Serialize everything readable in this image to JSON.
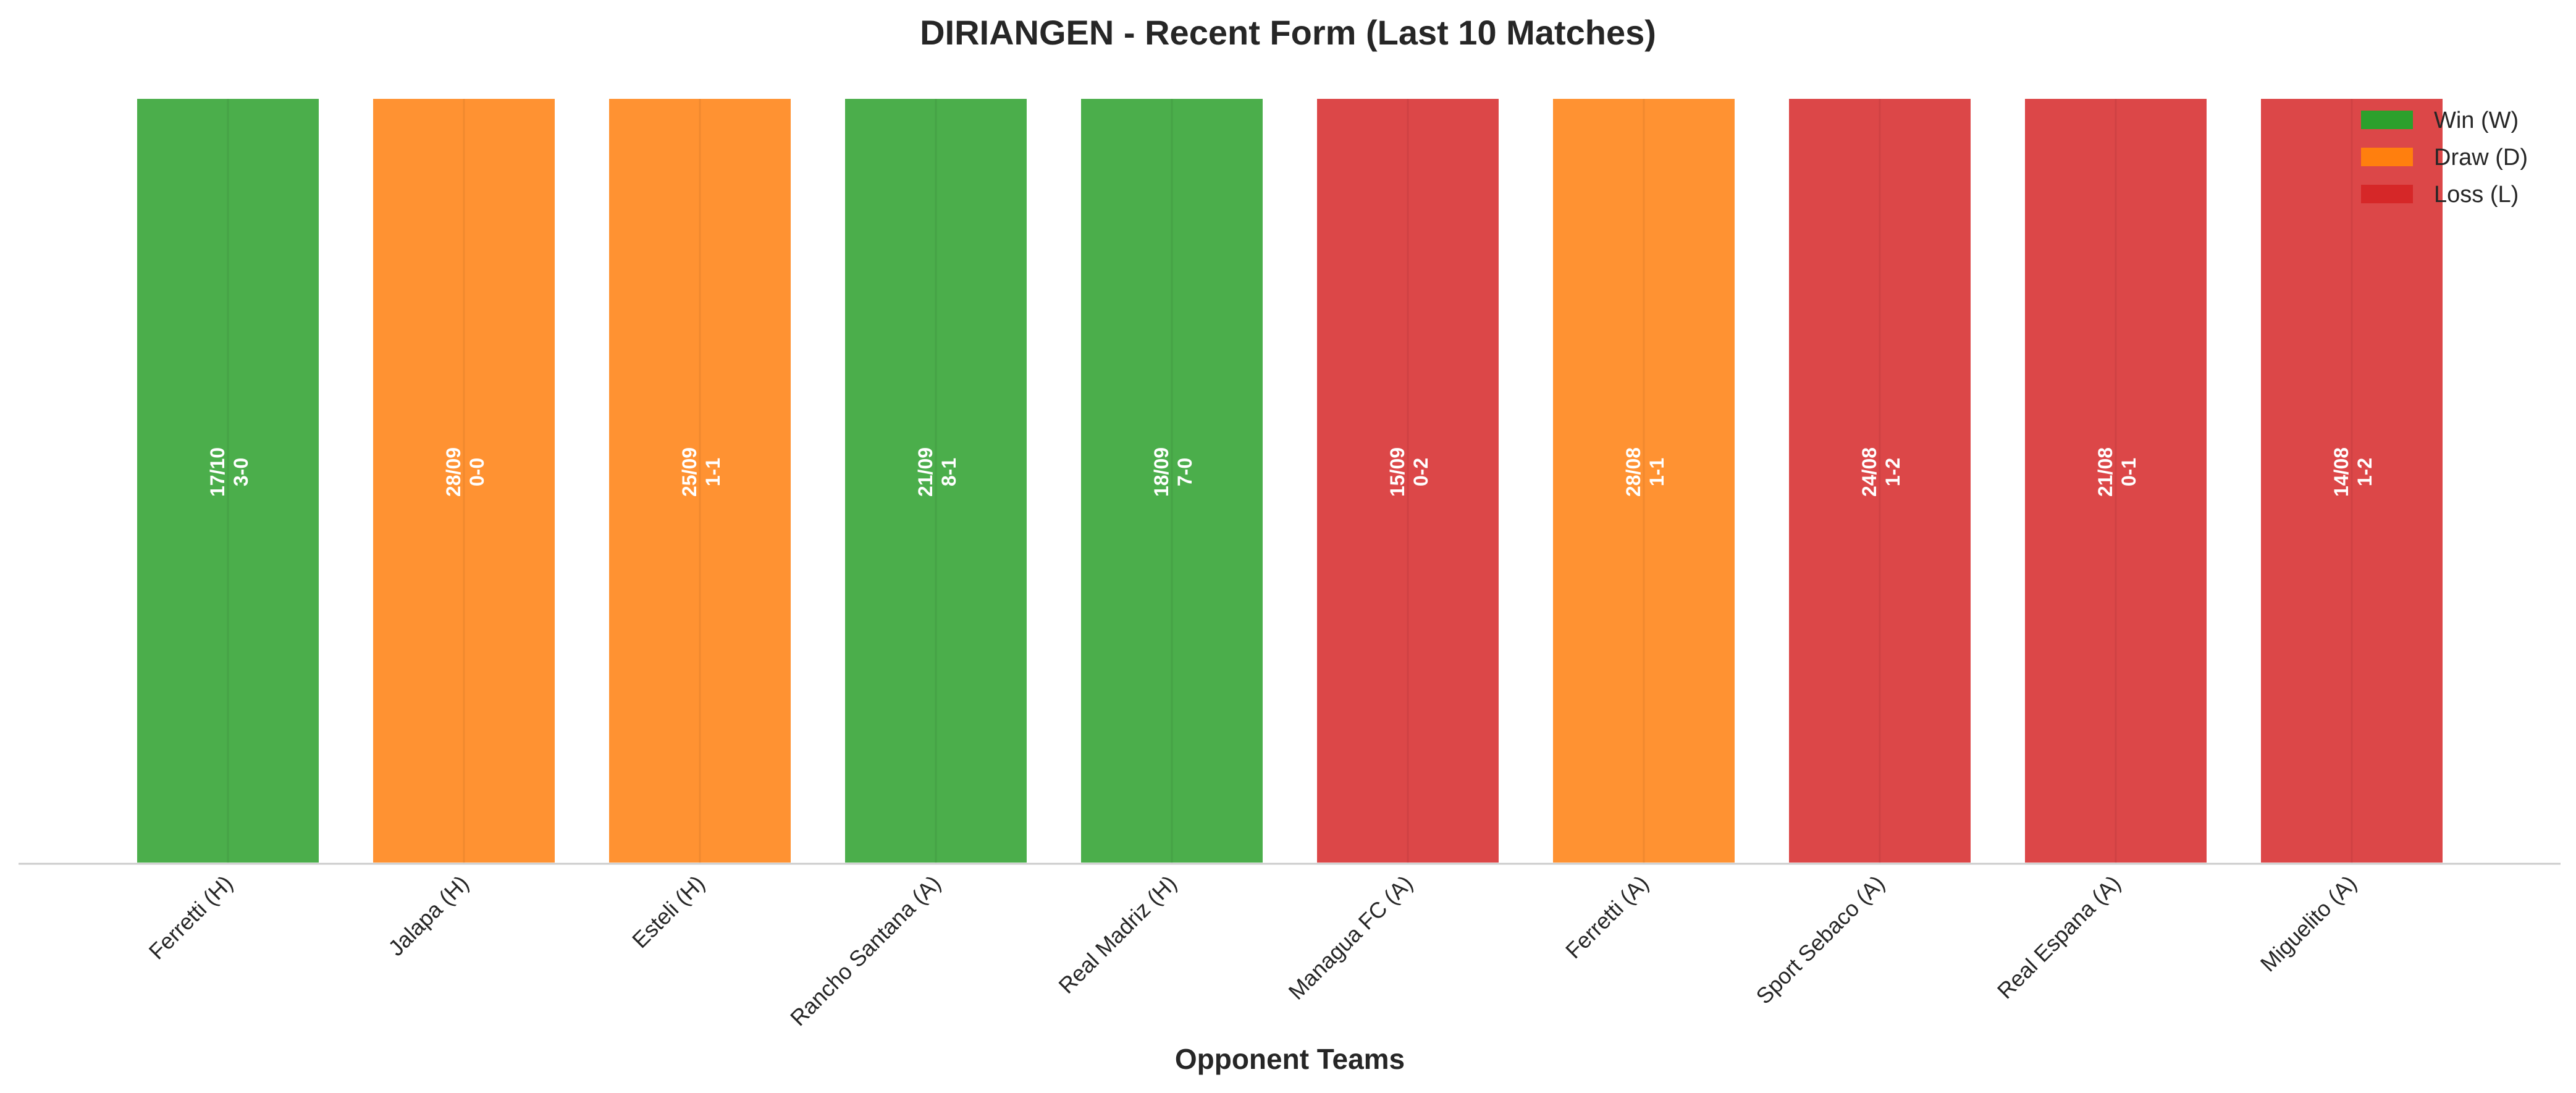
{
  "chart_data": {
    "type": "bar",
    "title": "DIRIANGEN - Recent Form (Last 10 Matches)",
    "xlabel": "Opponent Teams",
    "ylabel": "",
    "ylim": [
      0,
      1
    ],
    "grid": false,
    "legend_placement": "top-right",
    "categories": [
      "Ferretti (H)",
      "Jalapa (H)",
      "Esteli (H)",
      "Rancho Santana (A)",
      "Real Madriz (H)",
      "Managua FC (A)",
      "Ferretti (A)",
      "Sport Sebaco (A)",
      "Real Espana (A)",
      "Miguelito (A)"
    ],
    "values": [
      1,
      1,
      1,
      1,
      1,
      1,
      1,
      1,
      1,
      1
    ],
    "results": [
      "W",
      "D",
      "D",
      "W",
      "W",
      "L",
      "D",
      "L",
      "L",
      "L"
    ],
    "dates": [
      "17/10",
      "28/09",
      "25/09",
      "21/09",
      "18/09",
      "15/09",
      "28/08",
      "24/08",
      "21/08",
      "14/08"
    ],
    "scores": [
      "3-0",
      "0-0",
      "1-1",
      "8-1",
      "7-0",
      "0-2",
      "1-1",
      "1-2",
      "0-1",
      "1-2"
    ],
    "legend": [
      {
        "key": "W",
        "label": "Win (W)",
        "color": "#2ca02c"
      },
      {
        "key": "D",
        "label": "Draw (D)",
        "color": "#ff7f0e"
      },
      {
        "key": "L",
        "label": "Loss (L)",
        "color": "#d62728"
      }
    ]
  }
}
